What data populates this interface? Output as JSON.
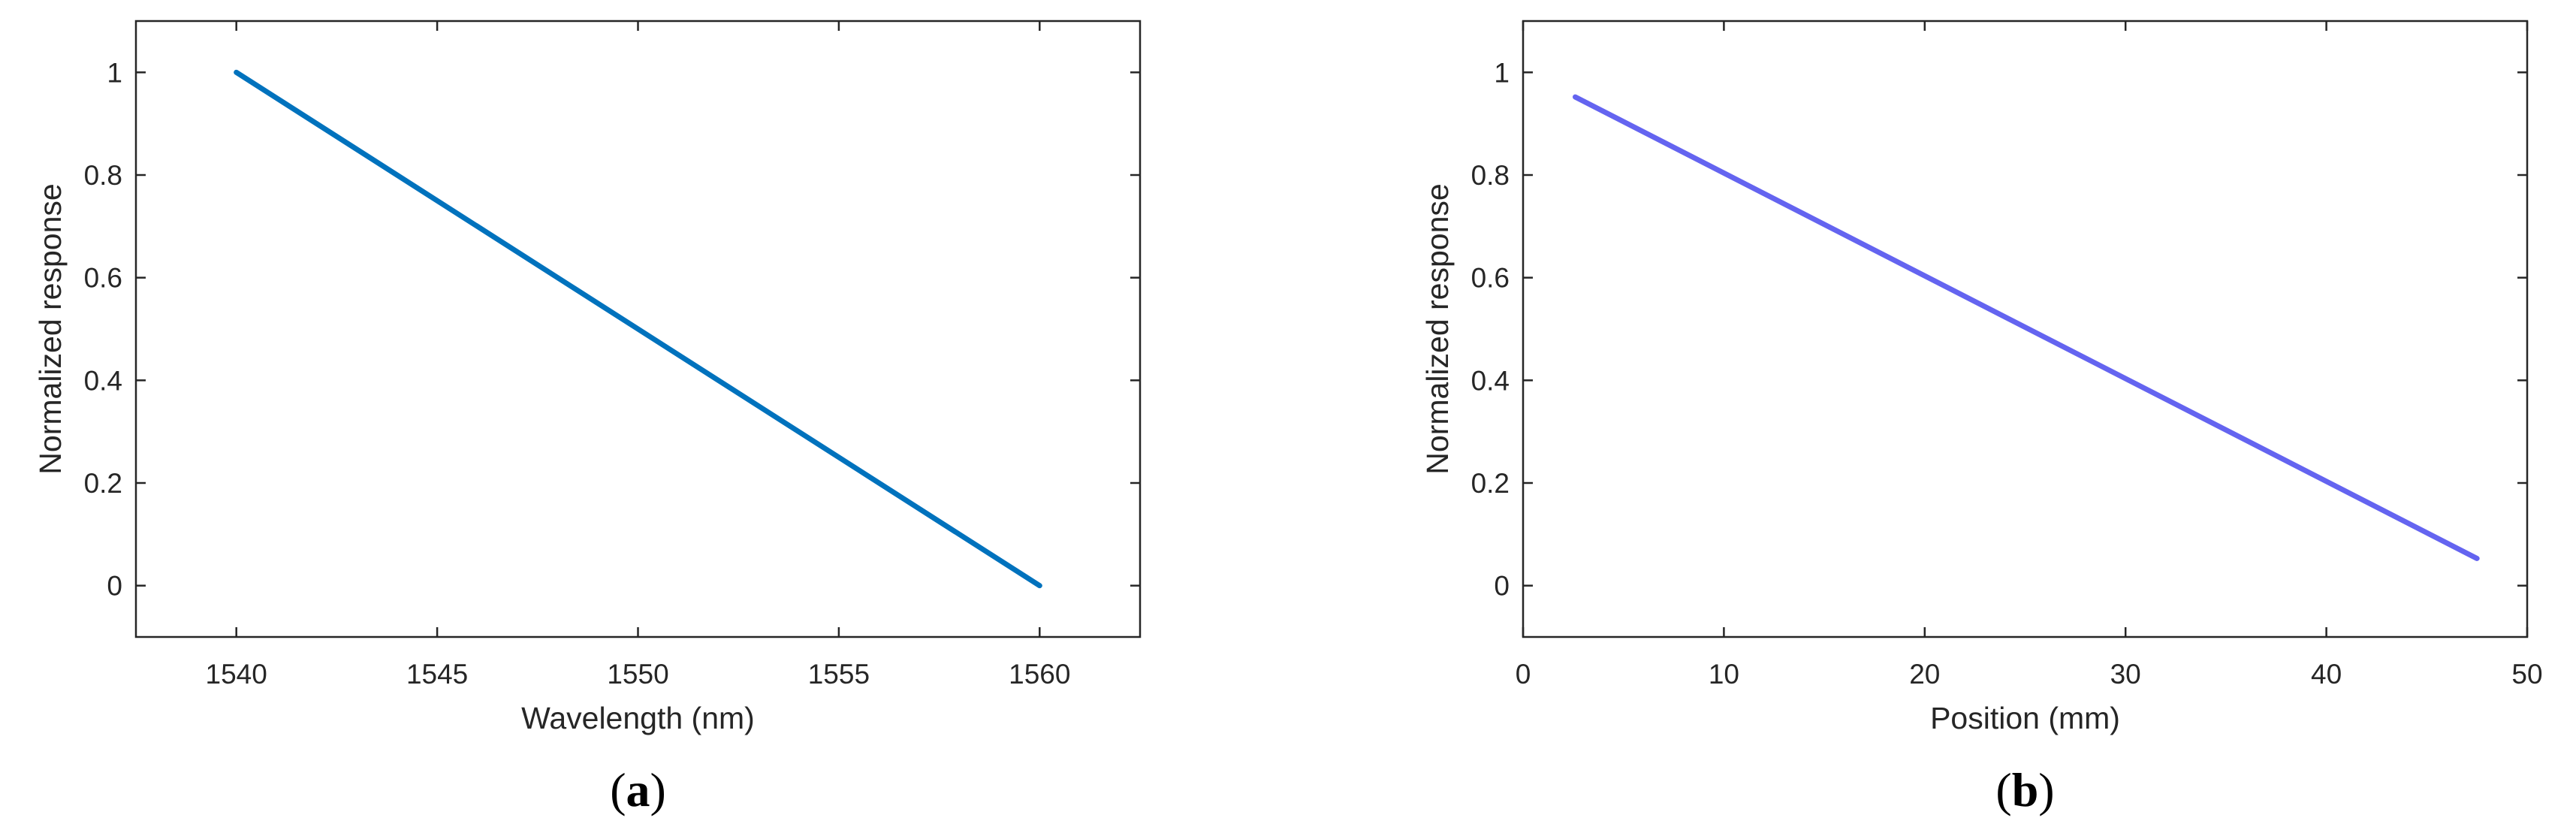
{
  "chart_data": [
    {
      "type": "line",
      "panel_label_letter": "a",
      "xlabel": "Wavelength (nm)",
      "ylabel": "Normalized response",
      "xlim": [
        1537.5,
        1562.5
      ],
      "ylim": [
        -0.1,
        1.1
      ],
      "xticks": [
        1540,
        1545,
        1550,
        1555,
        1560
      ],
      "yticks": [
        0,
        0.2,
        0.4,
        0.6,
        0.8,
        1
      ],
      "xtick_labels": [
        "1540",
        "1545",
        "1550",
        "1555",
        "1560"
      ],
      "ytick_labels": [
        "0",
        "0.2",
        "0.4",
        "0.6",
        "0.8",
        "1"
      ],
      "grid": false,
      "color": "#0072BD",
      "series": [
        {
          "x": [
            1540,
            1560
          ],
          "y": [
            1.0,
            0.0
          ]
        }
      ]
    },
    {
      "type": "line",
      "panel_label_letter": "b",
      "xlabel": "Position (mm)",
      "ylabel": "Normalized response",
      "xlim": [
        0,
        50
      ],
      "ylim": [
        -0.1,
        1.1
      ],
      "xticks": [
        0,
        10,
        20,
        30,
        40,
        50
      ],
      "yticks": [
        0,
        0.2,
        0.4,
        0.6,
        0.8,
        1
      ],
      "xtick_labels": [
        "0",
        "10",
        "20",
        "30",
        "40",
        "50"
      ],
      "ytick_labels": [
        "0",
        "0.2",
        "0.4",
        "0.6",
        "0.8",
        "1"
      ],
      "grid": false,
      "color": "#6464F0",
      "series": [
        {
          "x": [
            2.6,
            47.5
          ],
          "y": [
            0.952,
            0.053
          ]
        }
      ]
    }
  ]
}
